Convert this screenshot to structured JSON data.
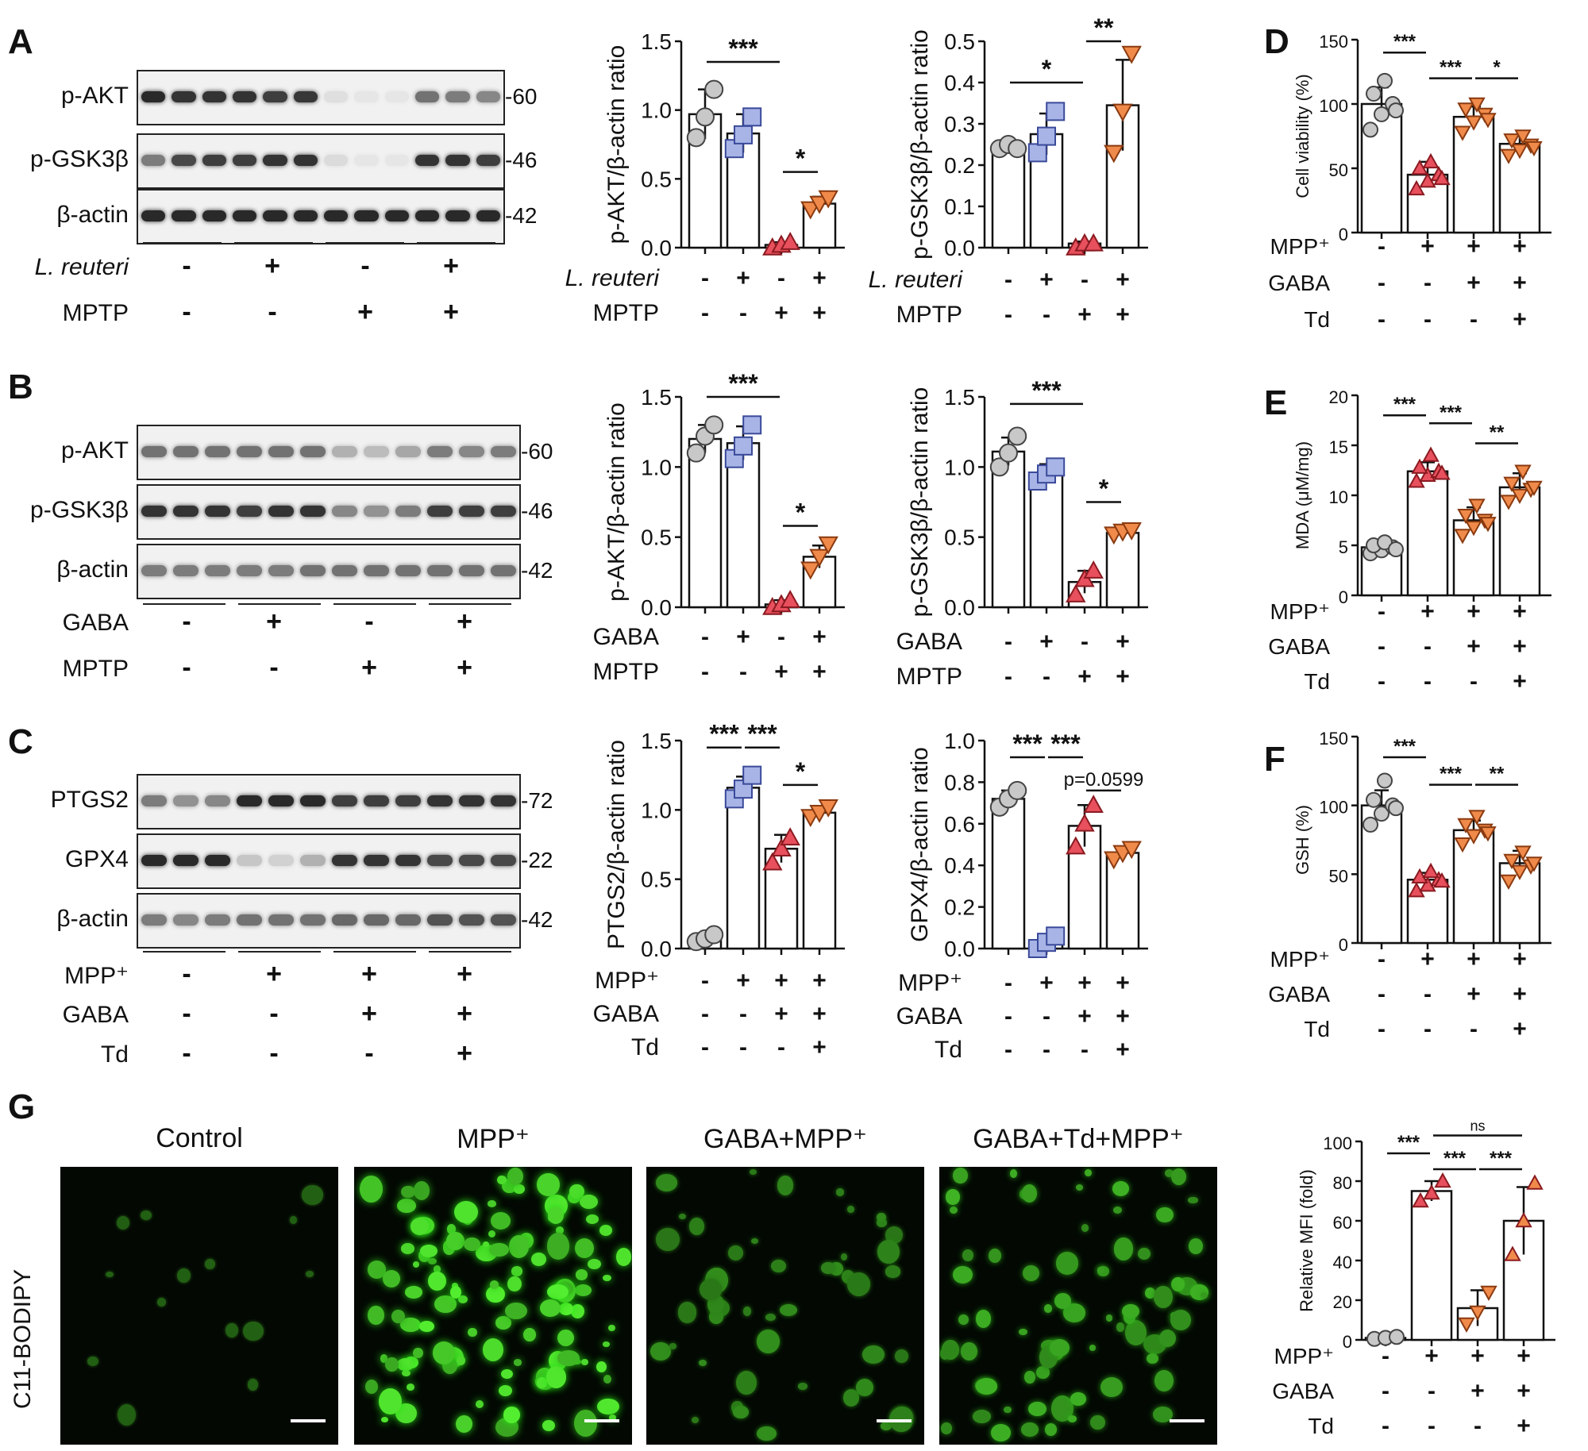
{
  "panel_letters": [
    "A",
    "B",
    "C",
    "D",
    "E",
    "F",
    "G"
  ],
  "blots": {
    "A": {
      "rows": [
        {
          "label": "p-AKT",
          "mw": "-60",
          "levels": [
            0.95,
            0.9,
            0.9,
            0.9,
            0.85,
            0.88,
            0.08,
            0.05,
            0.05,
            0.6,
            0.55,
            0.5
          ]
        },
        {
          "label": "p-GSK3β",
          "mw": "-46",
          "levels": [
            0.55,
            0.8,
            0.85,
            0.85,
            0.9,
            0.9,
            0.1,
            0.05,
            0.05,
            0.9,
            0.9,
            0.85
          ]
        },
        {
          "label": "β-actin",
          "mw": "-42",
          "levels": [
            0.95,
            0.95,
            0.95,
            0.95,
            0.95,
            0.95,
            0.95,
            0.95,
            0.95,
            0.95,
            0.95,
            0.95
          ]
        }
      ],
      "conditions": [
        {
          "label": "L. reuteri",
          "signs": [
            "-",
            "+",
            "-",
            "+"
          ]
        },
        {
          "label": "MPTP",
          "signs": [
            "-",
            "-",
            "+",
            "+"
          ]
        }
      ]
    },
    "B": {
      "rows": [
        {
          "label": "p-AKT",
          "mw": "-60",
          "levels": [
            0.6,
            0.6,
            0.6,
            0.6,
            0.6,
            0.6,
            0.3,
            0.25,
            0.35,
            0.55,
            0.5,
            0.55
          ]
        },
        {
          "label": "p-GSK3β",
          "mw": "-46",
          "levels": [
            0.9,
            0.9,
            0.9,
            0.85,
            0.9,
            0.9,
            0.5,
            0.45,
            0.55,
            0.85,
            0.85,
            0.85
          ]
        },
        {
          "label": "β-actin",
          "mw": "-42",
          "levels": [
            0.55,
            0.55,
            0.55,
            0.55,
            0.55,
            0.6,
            0.6,
            0.6,
            0.6,
            0.6,
            0.6,
            0.6
          ]
        }
      ],
      "conditions": [
        {
          "label": "GABA",
          "signs": [
            "-",
            "+",
            "-",
            "+"
          ]
        },
        {
          "label": "MPTP",
          "signs": [
            "-",
            "-",
            "+",
            "+"
          ]
        }
      ]
    },
    "C": {
      "rows": [
        {
          "label": "PTGS2",
          "mw": "-72",
          "levels": [
            0.55,
            0.45,
            0.5,
            0.95,
            0.95,
            0.95,
            0.85,
            0.85,
            0.85,
            0.9,
            0.9,
            0.9
          ]
        },
        {
          "label": "GPX4",
          "mw": "-22",
          "levels": [
            0.95,
            0.95,
            0.95,
            0.2,
            0.15,
            0.3,
            0.9,
            0.9,
            0.9,
            0.8,
            0.8,
            0.8
          ]
        },
        {
          "label": "β-actin",
          "mw": "-42",
          "levels": [
            0.55,
            0.5,
            0.55,
            0.6,
            0.6,
            0.6,
            0.65,
            0.65,
            0.65,
            0.75,
            0.75,
            0.75
          ]
        }
      ],
      "conditions": [
        {
          "label": "MPP⁺",
          "signs": [
            "-",
            "+",
            "+",
            "+"
          ]
        },
        {
          "label": "GABA",
          "signs": [
            "-",
            "-",
            "+",
            "+"
          ]
        },
        {
          "label": "Td",
          "signs": [
            "-",
            "-",
            "-",
            "+"
          ]
        }
      ]
    }
  },
  "microscopy": {
    "row_label": "C11-BODIPY",
    "titles": [
      "Control",
      "MPP⁺",
      "GABA+MPP⁺",
      "GABA+Td+MPP⁺"
    ],
    "intensity": [
      0.05,
      1.0,
      0.35,
      0.6
    ]
  },
  "colors": {
    "grey": "#c8c8c8",
    "blue": "#a8b4e6",
    "red": "#e8505e",
    "orange": "#f08a4a"
  },
  "chart_data": [
    {
      "id": "A1",
      "type": "bar",
      "ylabel": "p-AKT/β-actin ratio",
      "ylim": [
        0,
        1.5
      ],
      "yticks": [
        "0.0",
        "0.5",
        "1.0",
        "1.5"
      ],
      "values": [
        0.97,
        0.83,
        0.02,
        0.32
      ],
      "errors": [
        0.18,
        0.14,
        0.02,
        0.05
      ],
      "points": [
        [
          0.8,
          0.95,
          1.15
        ],
        [
          0.72,
          0.82,
          0.95
        ],
        [
          0.0,
          0.02,
          0.04
        ],
        [
          0.28,
          0.32,
          0.36
        ]
      ],
      "rows": [
        {
          "label": "L. reuteri",
          "signs": [
            "-",
            "+",
            "-",
            "+"
          ]
        },
        {
          "label": "MPTP",
          "signs": [
            "-",
            "-",
            "+",
            "+"
          ]
        }
      ],
      "sig": [
        {
          "a": 0,
          "b": 2,
          "label": "***",
          "level": 1.35
        },
        {
          "a": 2,
          "b": 3,
          "label": "*",
          "level": 0.55
        }
      ]
    },
    {
      "id": "A2",
      "type": "bar",
      "ylabel": "p-GSK3β/β-actin ratio",
      "ylim": [
        0,
        0.5
      ],
      "yticks": [
        "0.0",
        "0.1",
        "0.2",
        "0.3",
        "0.4",
        "0.5"
      ],
      "values": [
        0.245,
        0.275,
        0.01,
        0.345
      ],
      "errors": [
        0.01,
        0.05,
        0.005,
        0.11
      ],
      "points": [
        [
          0.24,
          0.25,
          0.24
        ],
        [
          0.23,
          0.27,
          0.33
        ],
        [
          0.0,
          0.01,
          0.01
        ],
        [
          0.23,
          0.33,
          0.47
        ]
      ],
      "rows": [
        {
          "label": "L. reuteri",
          "signs": [
            "-",
            "+",
            "-",
            "+"
          ]
        },
        {
          "label": "MPTP",
          "signs": [
            "-",
            "-",
            "+",
            "+"
          ]
        }
      ],
      "sig": [
        {
          "a": 0,
          "b": 2,
          "label": "*",
          "level": 0.4
        },
        {
          "a": 2,
          "b": 3,
          "label": "**",
          "level": 0.5
        }
      ]
    },
    {
      "id": "B1",
      "type": "bar",
      "ylabel": "p-AKT/β-actin ratio",
      "ylim": [
        0,
        1.5
      ],
      "yticks": [
        "0.0",
        "0.5",
        "1.0",
        "1.5"
      ],
      "values": [
        1.2,
        1.17,
        0.02,
        0.36
      ],
      "errors": [
        0.1,
        0.12,
        0.03,
        0.08
      ],
      "points": [
        [
          1.1,
          1.22,
          1.3
        ],
        [
          1.06,
          1.15,
          1.3
        ],
        [
          0.0,
          0.02,
          0.05
        ],
        [
          0.27,
          0.36,
          0.45
        ]
      ],
      "rows": [
        {
          "label": "GABA",
          "signs": [
            "-",
            "+",
            "-",
            "+"
          ]
        },
        {
          "label": "MPTP",
          "signs": [
            "-",
            "-",
            "+",
            "+"
          ]
        }
      ],
      "sig": [
        {
          "a": 0,
          "b": 2,
          "label": "***",
          "level": 1.5
        },
        {
          "a": 2,
          "b": 3,
          "label": "*",
          "level": 0.58
        }
      ]
    },
    {
      "id": "B2",
      "type": "bar",
      "ylabel": "p-GSK3β/β-actin ratio",
      "ylim": [
        0,
        1.5
      ],
      "yticks": [
        "0.0",
        "0.5",
        "1.0",
        "1.5"
      ],
      "values": [
        1.11,
        0.96,
        0.18,
        0.53
      ],
      "errors": [
        0.1,
        0.06,
        0.08,
        0.03
      ],
      "points": [
        [
          1.0,
          1.1,
          1.22
        ],
        [
          0.9,
          0.95,
          1.0
        ],
        [
          0.09,
          0.2,
          0.26
        ],
        [
          0.52,
          0.54,
          0.55
        ]
      ],
      "rows": [
        {
          "label": "GABA",
          "signs": [
            "-",
            "+",
            "-",
            "+"
          ]
        },
        {
          "label": "MPTP",
          "signs": [
            "-",
            "-",
            "+",
            "+"
          ]
        }
      ],
      "sig": [
        {
          "a": 0,
          "b": 2,
          "label": "***",
          "level": 1.45
        },
        {
          "a": 2,
          "b": 3,
          "label": "*",
          "level": 0.75
        }
      ]
    },
    {
      "id": "C1",
      "type": "bar",
      "ylabel": "PTGS2/β-actin ratio",
      "ylim": [
        0,
        1.5
      ],
      "yticks": [
        "0.0",
        "0.5",
        "1.0",
        "1.5"
      ],
      "values": [
        0.07,
        1.16,
        0.72,
        0.98
      ],
      "errors": [
        0.03,
        0.08,
        0.1,
        0.04
      ],
      "points": [
        [
          0.05,
          0.07,
          0.1
        ],
        [
          1.08,
          1.15,
          1.25
        ],
        [
          0.62,
          0.72,
          0.8
        ],
        [
          0.95,
          0.98,
          1.02
        ]
      ],
      "rows": [
        {
          "label": "MPP⁺",
          "signs": [
            "-",
            "+",
            "+",
            "+"
          ]
        },
        {
          "label": "GABA",
          "signs": [
            "-",
            "-",
            "+",
            "+"
          ]
        },
        {
          "label": "Td",
          "signs": [
            "-",
            "-",
            "-",
            "+"
          ]
        }
      ],
      "sig": [
        {
          "a": 0,
          "b": 1,
          "label": "***",
          "level": 1.45
        },
        {
          "a": 1,
          "b": 2,
          "label": "***",
          "level": 1.45
        },
        {
          "a": 2,
          "b": 3,
          "label": "*",
          "level": 1.18
        }
      ]
    },
    {
      "id": "C2",
      "type": "bar",
      "ylabel": "GPX4/β-actin ratio",
      "ylim": [
        0,
        1.0
      ],
      "yticks": [
        "0.0",
        "0.2",
        "0.4",
        "0.6",
        "0.8",
        "1.0"
      ],
      "values": [
        0.72,
        0.03,
        0.59,
        0.46
      ],
      "errors": [
        0.04,
        0.03,
        0.1,
        0.03
      ],
      "points": [
        [
          0.68,
          0.72,
          0.76
        ],
        [
          0.0,
          0.03,
          0.06
        ],
        [
          0.49,
          0.6,
          0.69
        ],
        [
          0.43,
          0.46,
          0.48
        ]
      ],
      "rows": [
        {
          "label": "MPP⁺",
          "signs": [
            "-",
            "+",
            "+",
            "+"
          ]
        },
        {
          "label": "GABA",
          "signs": [
            "-",
            "-",
            "+",
            "+"
          ]
        },
        {
          "label": "Td",
          "signs": [
            "-",
            "-",
            "-",
            "+"
          ]
        }
      ],
      "sig": [
        {
          "a": 0,
          "b": 1,
          "label": "***",
          "level": 0.92
        },
        {
          "a": 1,
          "b": 2,
          "label": "***",
          "level": 0.92
        },
        {
          "a": 2,
          "b": 3,
          "label": "p=0.0599",
          "level": 0.76
        }
      ]
    },
    {
      "id": "D",
      "type": "bar",
      "ylabel": "Cell viability (%)",
      "ylim": [
        0,
        150
      ],
      "yticks": [
        "0",
        "50",
        "100",
        "150"
      ],
      "values": [
        100,
        45,
        90,
        69
      ],
      "errors": [
        13,
        10,
        8,
        6
      ],
      "points": [
        [
          80,
          92,
          100,
          108,
          118,
          95
        ],
        [
          34,
          40,
          45,
          50,
          55,
          42
        ],
        [
          78,
          86,
          92,
          96,
          100,
          88
        ],
        [
          60,
          64,
          68,
          72,
          75,
          66
        ]
      ],
      "rows": [
        {
          "label": "MPP⁺",
          "signs": [
            "-",
            "+",
            "+",
            "+"
          ]
        },
        {
          "label": "GABA",
          "signs": [
            "-",
            "-",
            "+",
            "+"
          ]
        },
        {
          "label": "Td",
          "signs": [
            "-",
            "-",
            "-",
            "+"
          ]
        }
      ],
      "sig": [
        {
          "a": 0,
          "b": 1,
          "label": "***",
          "level": 140
        },
        {
          "a": 1,
          "b": 2,
          "label": "***",
          "level": 120
        },
        {
          "a": 2,
          "b": 3,
          "label": "*",
          "level": 120
        }
      ]
    },
    {
      "id": "E",
      "type": "bar",
      "ylabel": "MDA (μM/mg)",
      "ylim": [
        0,
        20
      ],
      "yticks": [
        "0",
        "5",
        "10",
        "15",
        "20"
      ],
      "values": [
        4.8,
        12.4,
        7.5,
        10.8
      ],
      "errors": [
        0.5,
        0.9,
        1.3,
        1.4
      ],
      "points": [
        [
          4.2,
          4.5,
          4.8,
          5.0,
          5.3,
          4.6
        ],
        [
          11.4,
          12.0,
          12.4,
          12.8,
          14.0,
          12.2
        ],
        [
          6.0,
          6.8,
          7.5,
          8.0,
          9.0,
          7.2
        ],
        [
          9.4,
          10.0,
          10.6,
          11.2,
          12.4,
          10.8
        ]
      ],
      "rows": [
        {
          "label": "MPP⁺",
          "signs": [
            "-",
            "+",
            "+",
            "+"
          ]
        },
        {
          "label": "GABA",
          "signs": [
            "-",
            "-",
            "+",
            "+"
          ]
        },
        {
          "label": "Td",
          "signs": [
            "-",
            "-",
            "-",
            "+"
          ]
        }
      ],
      "sig": [
        {
          "a": 0,
          "b": 1,
          "label": "***",
          "level": 18
        },
        {
          "a": 1,
          "b": 2,
          "label": "***",
          "level": 17.2
        },
        {
          "a": 2,
          "b": 3,
          "label": "**",
          "level": 15.2
        }
      ]
    },
    {
      "id": "F",
      "type": "bar",
      "ylabel": "GSH (%)",
      "ylim": [
        0,
        150
      ],
      "yticks": [
        "0",
        "50",
        "100",
        "150"
      ],
      "values": [
        100,
        46,
        82,
        58
      ],
      "errors": [
        11,
        5,
        7,
        9
      ],
      "points": [
        [
          86,
          94,
          100,
          104,
          118,
          98
        ],
        [
          38,
          42,
          46,
          48,
          52,
          45
        ],
        [
          72,
          78,
          82,
          86,
          92,
          80
        ],
        [
          45,
          52,
          56,
          60,
          66,
          58
        ]
      ],
      "rows": [
        {
          "label": "MPP⁺",
          "signs": [
            "-",
            "+",
            "+",
            "+"
          ]
        },
        {
          "label": "GABA",
          "signs": [
            "-",
            "-",
            "+",
            "+"
          ]
        },
        {
          "label": "Td",
          "signs": [
            "-",
            "-",
            "-",
            "+"
          ]
        }
      ],
      "sig": [
        {
          "a": 0,
          "b": 1,
          "label": "***",
          "level": 135
        },
        {
          "a": 1,
          "b": 2,
          "label": "***",
          "level": 115
        },
        {
          "a": 2,
          "b": 3,
          "label": "**",
          "level": 115
        }
      ]
    },
    {
      "id": "G",
      "type": "bar",
      "ylabel": "Relative MFI (fold)",
      "ylim": [
        0,
        100
      ],
      "yticks": [
        "0",
        "20",
        "40",
        "60",
        "80",
        "100"
      ],
      "values": [
        1,
        75,
        16,
        60
      ],
      "errors": [
        0.5,
        5,
        9,
        17
      ],
      "points": [
        [
          0.5,
          1,
          1.5
        ],
        [
          70,
          74,
          80
        ],
        [
          8,
          14,
          24
        ],
        [
          43,
          60,
          79
        ]
      ],
      "rows": [
        {
          "label": "MPP⁺",
          "signs": [
            "-",
            "+",
            "+",
            "+"
          ]
        },
        {
          "label": "GABA",
          "signs": [
            "-",
            "-",
            "+",
            "+"
          ]
        },
        {
          "label": "Td",
          "signs": [
            "-",
            "-",
            "-",
            "+"
          ]
        }
      ],
      "sig": [
        {
          "a": 0,
          "b": 1,
          "label": "***",
          "level": 94
        },
        {
          "a": 1,
          "b": 2,
          "label": "***",
          "level": 86
        },
        {
          "a": 2,
          "b": 3,
          "label": "***",
          "level": 86
        },
        {
          "a": 1,
          "b": 3,
          "label": "ns",
          "level": 103
        }
      ]
    }
  ]
}
